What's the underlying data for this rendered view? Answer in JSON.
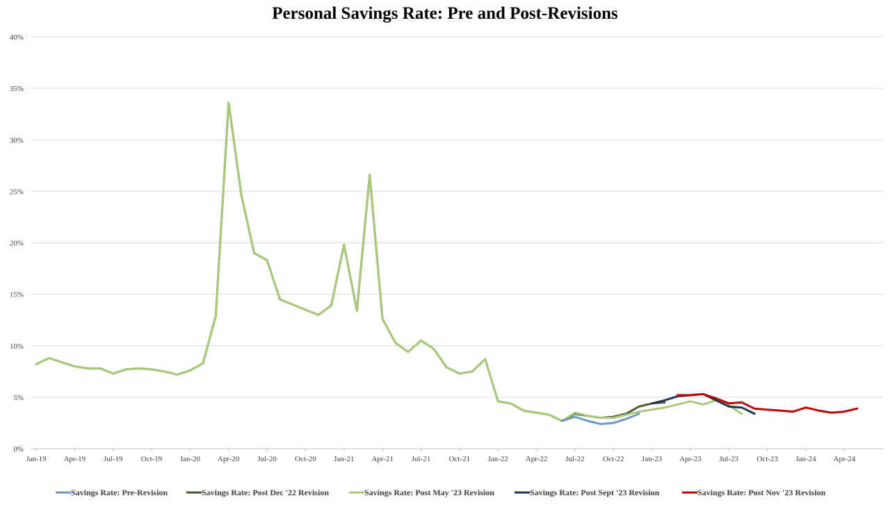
{
  "chart_data": {
    "type": "line",
    "title": "Personal Savings Rate: Pre and Post-Revisions",
    "xlabel": "",
    "ylabel": "",
    "ylim": [
      0,
      40
    ],
    "y_ticks": [
      "0%",
      "5%",
      "10%",
      "15%",
      "20%",
      "25%",
      "30%",
      "35%",
      "40%"
    ],
    "x_start": "Jan-19",
    "x_tick_labels": [
      "Jan-19",
      "Apr-19",
      "Jul-19",
      "Oct-19",
      "Jan-20",
      "Apr-20",
      "Jul-20",
      "Oct-20",
      "Jan-21",
      "Apr-21",
      "Jul-21",
      "Oct-21",
      "Jan-22",
      "Apr-22",
      "Jul-22",
      "Oct-22",
      "Jan-23",
      "Apr-23",
      "Jul-23",
      "Oct-23",
      "Jan-24",
      "Apr-24"
    ],
    "grid": "horizontal",
    "legend_position": "bottom",
    "series": [
      {
        "name": "Savings Rate: Post Dec '22 Revision",
        "color": "#4a5a2a",
        "start": "Jan-19",
        "values": [
          8.2,
          8.8,
          8.4,
          8.0,
          7.8,
          7.8,
          7.3,
          7.7,
          7.8,
          7.7,
          7.5,
          7.2,
          7.6,
          8.3,
          12.9,
          33.6,
          24.6,
          19.0,
          18.3,
          14.5,
          14.0,
          13.5,
          13.0,
          13.9,
          19.8,
          13.4,
          26.6,
          12.6,
          10.3,
          9.4,
          10.5,
          9.7,
          7.9,
          7.3,
          7.5,
          8.7,
          4.6,
          4.4,
          3.7,
          3.5,
          3.3,
          2.7,
          3.4,
          3.2,
          3.0,
          3.1,
          3.4,
          4.1,
          4.4,
          4.5
        ]
      },
      {
        "name": "Savings Rate: Post May '23 Revision",
        "color": "#a9c97a",
        "start": "Jan-19",
        "values": [
          8.2,
          8.8,
          8.4,
          8.0,
          7.8,
          7.8,
          7.3,
          7.7,
          7.8,
          7.7,
          7.5,
          7.2,
          7.6,
          8.3,
          12.9,
          33.6,
          24.6,
          19.0,
          18.3,
          14.5,
          14.0,
          13.5,
          13.0,
          13.9,
          19.8,
          13.4,
          26.6,
          12.6,
          10.3,
          9.4,
          10.5,
          9.7,
          7.9,
          7.3,
          7.5,
          8.7,
          4.6,
          4.4,
          3.7,
          3.5,
          3.3,
          2.7,
          3.5,
          3.2,
          3.0,
          3.0,
          3.3,
          3.6,
          3.8,
          4.0,
          4.3,
          4.6,
          4.3,
          4.7,
          4.2,
          3.4
        ]
      },
      {
        "name": "Savings Rate: Pre-Revision",
        "color": "#6d96c8",
        "start": "Jun-22",
        "values": [
          2.7,
          3.1,
          2.7,
          2.4,
          2.5,
          2.9,
          3.4
        ]
      },
      {
        "name": "Savings Rate: Post Sept '23 Revision",
        "color": "#1f3550",
        "start": "Jan-23",
        "values": [
          4.4,
          4.7,
          5.1,
          5.2,
          5.3,
          4.7,
          4.1,
          4.0,
          3.4
        ]
      },
      {
        "name": "Savings Rate: Post Nov '23 Revision",
        "color": "#c00000",
        "start": "Mar-23",
        "values": [
          5.2,
          5.2,
          5.3,
          4.9,
          4.4,
          4.5,
          3.9,
          3.8,
          3.7,
          3.6,
          4.0,
          3.7,
          3.5,
          3.6,
          3.9
        ]
      }
    ],
    "legend_order": [
      {
        "label": "Savings Rate: Pre-Revision",
        "color": "#6d96c8"
      },
      {
        "label": "Savings Rate: Post Dec '22 Revision",
        "color": "#4a5a2a"
      },
      {
        "label": "Savings Rate: Post May '23 Revision",
        "color": "#a9c97a"
      },
      {
        "label": "Savings Rate: Post Sept '23 Revision",
        "color": "#1f3550"
      },
      {
        "label": "Savings Rate: Post Nov '23 Revision",
        "color": "#c00000"
      }
    ]
  }
}
